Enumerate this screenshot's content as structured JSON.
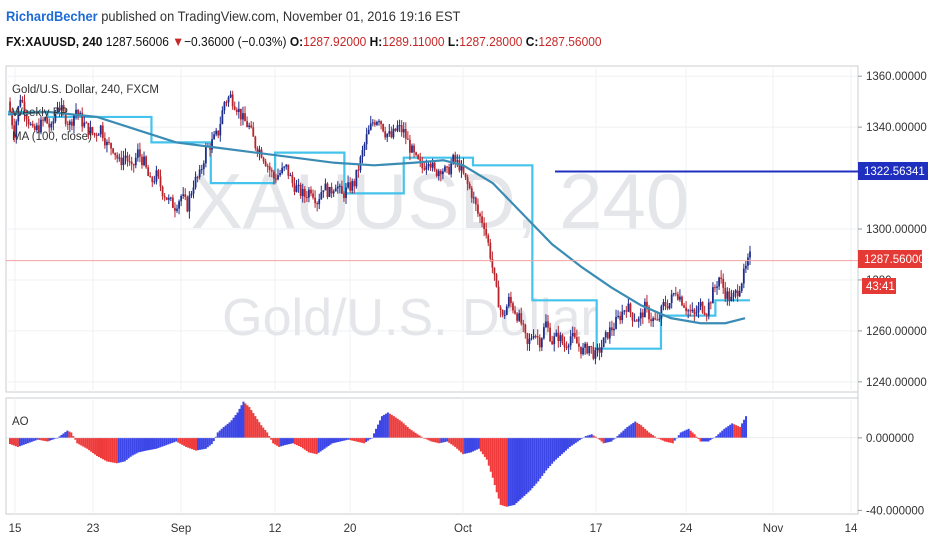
{
  "header": {
    "author": "RichardBecher",
    "published_text": " published on TradingView.com, November 01, 2016 19:16 EST",
    "symbol_interval": "FX:XAUUSD, 240",
    "last_price": "1287.56006",
    "change_arrow": "▼",
    "change": "−0.36000 (−0.03%)",
    "open_label": "O:",
    "open": "1287.92000",
    "high_label": "H:",
    "high": "1289.11000",
    "low_label": "L:",
    "low": "1287.28000",
    "close_label": "C:",
    "close": "1287.56000"
  },
  "legend": {
    "title": "Gold/U.S. Dollar, 240, FXCM",
    "item1": "Weekly PP",
    "item2": "MA (100, close)",
    "oscillator": "AO"
  },
  "watermark": {
    "symbol": "XAUUSD, 240",
    "name": "Gold/U.S. Dollar"
  },
  "price_tags": {
    "hline": "1322.56341",
    "last": "1287.56000",
    "countdown": "43:41"
  },
  "colors": {
    "up_candle": "#1c2d8c",
    "down_candle": "#b8242c",
    "ma_line": "#3b8cb5",
    "pivot_line": "#44c3ec",
    "hline": "#1f2fbf",
    "last_price_line": "#f2a3a3",
    "ao_up": "#3c46e6",
    "ao_down": "#ef3b3b"
  },
  "chart_data": [
    {
      "type": "candlestick",
      "title": "Gold/U.S. Dollar, 240, FXCM",
      "ylim": [
        1236,
        1364
      ],
      "y_ticks": [
        "1240.00000",
        "1260.00000",
        "1280.",
        "1300.00000",
        "1340.00000",
        "1360.00000"
      ],
      "x_ticks": [
        "15",
        "23",
        "Sep",
        "12",
        "20",
        "Oct",
        "17",
        "24",
        "Nov",
        "14"
      ],
      "ma_100": [
        [
          0,
          1345
        ],
        [
          40,
          1346
        ],
        [
          90,
          1344
        ],
        [
          130,
          1339
        ],
        [
          170,
          1334
        ],
        [
          210,
          1332
        ],
        [
          250,
          1330
        ],
        [
          290,
          1328
        ],
        [
          330,
          1326
        ],
        [
          370,
          1325
        ],
        [
          410,
          1326
        ],
        [
          440,
          1327
        ],
        [
          460,
          1325
        ],
        [
          490,
          1318
        ],
        [
          520,
          1306
        ],
        [
          550,
          1294
        ],
        [
          580,
          1285
        ],
        [
          610,
          1277
        ],
        [
          640,
          1270
        ],
        [
          670,
          1265
        ],
        [
          700,
          1263
        ],
        [
          725,
          1263
        ],
        [
          745,
          1265
        ]
      ],
      "weekly_pp": [
        [
          0,
          1346
        ],
        [
          40,
          1346
        ],
        [
          40,
          1344
        ],
        [
          145,
          1344
        ],
        [
          145,
          1334
        ],
        [
          205,
          1334
        ],
        [
          205,
          1318
        ],
        [
          270,
          1318
        ],
        [
          270,
          1330
        ],
        [
          340,
          1330
        ],
        [
          340,
          1314
        ],
        [
          400,
          1314
        ],
        [
          400,
          1328
        ],
        [
          470,
          1328
        ],
        [
          470,
          1325
        ],
        [
          530,
          1325
        ],
        [
          530,
          1272
        ],
        [
          595,
          1272
        ],
        [
          595,
          1253
        ],
        [
          660,
          1253
        ],
        [
          660,
          1266
        ],
        [
          715,
          1266
        ],
        [
          715,
          1272
        ],
        [
          750,
          1272
        ]
      ],
      "hline": 1322.56341,
      "last_price": 1287.56,
      "candles_source": "price path (index, close)",
      "price_path": [
        [
          0,
          1350
        ],
        [
          3,
          1338
        ],
        [
          6,
          1352
        ],
        [
          9,
          1345
        ],
        [
          12,
          1338
        ],
        [
          15,
          1340
        ],
        [
          18,
          1343
        ],
        [
          21,
          1339
        ],
        [
          24,
          1349
        ],
        [
          27,
          1345
        ],
        [
          30,
          1341
        ],
        [
          33,
          1347
        ],
        [
          36,
          1342
        ],
        [
          39,
          1339
        ],
        [
          42,
          1337
        ],
        [
          45,
          1340
        ],
        [
          48,
          1333
        ],
        [
          51,
          1332
        ],
        [
          54,
          1326
        ],
        [
          57,
          1329
        ],
        [
          60,
          1323
        ],
        [
          63,
          1330
        ],
        [
          66,
          1326
        ],
        [
          69,
          1318
        ],
        [
          72,
          1321
        ],
        [
          75,
          1315
        ],
        [
          78,
          1311
        ],
        [
          81,
          1309
        ],
        [
          84,
          1313
        ],
        [
          87,
          1309
        ],
        [
          90,
          1318
        ],
        [
          93,
          1321
        ],
        [
          96,
          1331
        ],
        [
          99,
          1334
        ],
        [
          102,
          1338
        ],
        [
          105,
          1350
        ],
        [
          108,
          1352
        ],
        [
          111,
          1348
        ],
        [
          114,
          1343
        ],
        [
          117,
          1340
        ],
        [
          120,
          1333
        ],
        [
          123,
          1330
        ],
        [
          126,
          1325
        ],
        [
          129,
          1320
        ],
        [
          132,
          1322
        ],
        [
          135,
          1324
        ],
        [
          138,
          1318
        ],
        [
          141,
          1315
        ],
        [
          144,
          1313
        ],
        [
          147,
          1316
        ],
        [
          150,
          1311
        ],
        [
          153,
          1317
        ],
        [
          156,
          1314
        ],
        [
          159,
          1318
        ],
        [
          162,
          1313
        ],
        [
          165,
          1316
        ],
        [
          168,
          1318
        ],
        [
          171,
          1327
        ],
        [
          174,
          1336
        ],
        [
          177,
          1342
        ],
        [
          180,
          1344
        ],
        [
          183,
          1338
        ],
        [
          186,
          1336
        ],
        [
          189,
          1340
        ],
        [
          192,
          1338
        ],
        [
          195,
          1332
        ],
        [
          198,
          1327
        ],
        [
          201,
          1324
        ],
        [
          204,
          1328
        ],
        [
          207,
          1322
        ],
        [
          210,
          1324
        ],
        [
          213,
          1322
        ],
        [
          216,
          1327
        ],
        [
          219,
          1325
        ],
        [
          222,
          1319
        ],
        [
          225,
          1314
        ],
        [
          228,
          1306
        ],
        [
          231,
          1302
        ],
        [
          234,
          1290
        ],
        [
          237,
          1275
        ],
        [
          240,
          1265
        ],
        [
          243,
          1272
        ],
        [
          246,
          1268
        ],
        [
          249,
          1263
        ],
        [
          252,
          1254
        ],
        [
          255,
          1260
        ],
        [
          258,
          1256
        ],
        [
          261,
          1263
        ],
        [
          264,
          1256
        ],
        [
          267,
          1258
        ],
        [
          270,
          1254
        ],
        [
          273,
          1258
        ],
        [
          276,
          1255
        ],
        [
          279,
          1252
        ],
        [
          282,
          1254
        ],
        [
          285,
          1250
        ],
        [
          288,
          1254
        ],
        [
          291,
          1259
        ],
        [
          294,
          1262
        ],
        [
          297,
          1266
        ],
        [
          300,
          1270
        ],
        [
          303,
          1266
        ],
        [
          306,
          1264
        ],
        [
          309,
          1269
        ],
        [
          312,
          1265
        ],
        [
          315,
          1263
        ],
        [
          318,
          1270
        ],
        [
          321,
          1271
        ],
        [
          324,
          1276
        ],
        [
          327,
          1272
        ],
        [
          330,
          1268
        ],
        [
          333,
          1266
        ],
        [
          336,
          1270
        ],
        [
          339,
          1268
        ],
        [
          342,
          1275
        ],
        [
          345,
          1281
        ],
        [
          348,
          1275
        ],
        [
          351,
          1272
        ],
        [
          354,
          1276
        ],
        [
          357,
          1282
        ],
        [
          360,
          1289
        ]
      ]
    },
    {
      "type": "bar",
      "title": "AO",
      "ylim": [
        -42,
        22
      ],
      "y_ticks": [
        "0.000000",
        "-40.000000"
      ],
      "series": [
        {
          "values": [
            [
              0,
              -3
            ],
            [
              10,
              -5
            ],
            [
              20,
              -3
            ],
            [
              30,
              -1
            ],
            [
              40,
              -2
            ],
            [
              50,
              0
            ],
            [
              55,
              2
            ],
            [
              60,
              4
            ],
            [
              64,
              3
            ],
            [
              70,
              -3
            ],
            [
              80,
              -6
            ],
            [
              90,
              -10
            ],
            [
              100,
              -13
            ],
            [
              110,
              -14
            ],
            [
              118,
              -13
            ],
            [
              125,
              -10
            ],
            [
              132,
              -8
            ],
            [
              140,
              -7
            ],
            [
              150,
              -6
            ],
            [
              160,
              -4
            ],
            [
              170,
              -2
            ],
            [
              180,
              -5
            ],
            [
              190,
              -7
            ],
            [
              200,
              -6
            ],
            [
              207,
              -3
            ],
            [
              212,
              3
            ],
            [
              218,
              6
            ],
            [
              225,
              9
            ],
            [
              232,
              14
            ],
            [
              238,
              20
            ],
            [
              244,
              17
            ],
            [
              250,
              12
            ],
            [
              256,
              7
            ],
            [
              262,
              3
            ],
            [
              268,
              -3
            ],
            [
              274,
              -5
            ],
            [
              280,
              -4
            ],
            [
              288,
              -3
            ],
            [
              296,
              -5
            ],
            [
              304,
              -8
            ],
            [
              312,
              -9
            ],
            [
              320,
              -6
            ],
            [
              328,
              -3
            ],
            [
              336,
              -2
            ],
            [
              344,
              -1
            ],
            [
              352,
              -2
            ],
            [
              360,
              -3
            ],
            [
              368,
              0
            ],
            [
              372,
              5
            ],
            [
              378,
              12
            ],
            [
              384,
              14
            ],
            [
              390,
              12
            ],
            [
              398,
              9
            ],
            [
              406,
              5
            ],
            [
              414,
              2
            ],
            [
              420,
              0
            ],
            [
              428,
              -2
            ],
            [
              436,
              -3
            ],
            [
              444,
              -2
            ],
            [
              452,
              -5
            ],
            [
              460,
              -9
            ],
            [
              468,
              -8
            ],
            [
              476,
              -6
            ],
            [
              484,
              -12
            ],
            [
              490,
              -22
            ],
            [
              494,
              -30
            ],
            [
              498,
              -37
            ],
            [
              504,
              -38
            ],
            [
              512,
              -37
            ],
            [
              520,
              -33
            ],
            [
              528,
              -29
            ],
            [
              536,
              -24
            ],
            [
              544,
              -18
            ],
            [
              552,
              -13
            ],
            [
              560,
              -9
            ],
            [
              568,
              -5
            ],
            [
              576,
              -2
            ],
            [
              584,
              1
            ],
            [
              590,
              2
            ],
            [
              596,
              0
            ],
            [
              602,
              -3
            ],
            [
              610,
              -2
            ],
            [
              618,
              2
            ],
            [
              626,
              6
            ],
            [
              634,
              9
            ],
            [
              640,
              7
            ],
            [
              648,
              3
            ],
            [
              656,
              0
            ],
            [
              664,
              -2
            ],
            [
              672,
              -3
            ],
            [
              680,
              3
            ],
            [
              688,
              5
            ],
            [
              694,
              2
            ],
            [
              700,
              -2
            ],
            [
              708,
              -2
            ],
            [
              716,
              1
            ],
            [
              724,
              5
            ],
            [
              732,
              8
            ],
            [
              740,
              6
            ],
            [
              746,
              12
            ]
          ]
        }
      ]
    }
  ]
}
